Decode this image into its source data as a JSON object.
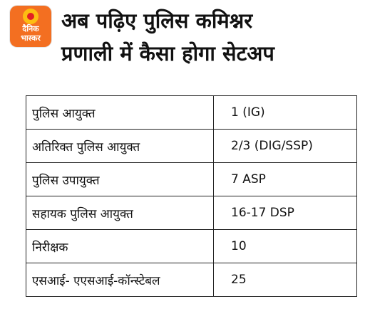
{
  "logo": {
    "line1": "दैनिक",
    "line2": "भास्कर",
    "brand_orange": "#f36f21",
    "sun_yellow": "#fdbd12",
    "sun_red": "#e31e24"
  },
  "title": {
    "line1": "अब पढ़िए पुलिस कमिश्नर",
    "line2": "प्रणाली में कैसा होगा सेटअप"
  },
  "table": {
    "rows": [
      {
        "post": "पुलिस आयुक्त",
        "value": "1 (IG)"
      },
      {
        "post": "अतिरिक्त पुलिस आयुक्त",
        "value": "2/3 (DIG/SSP)"
      },
      {
        "post": "पुलिस उपायुक्त",
        "value": "7 ASP"
      },
      {
        "post": "सहायक पुलिस आयुक्त",
        "value": "16-17 DSP"
      },
      {
        "post": "निरीक्षक",
        "value": "10"
      },
      {
        "post": "एसआई- एएसआई-कॉन्स्टेबल",
        "value": "25"
      }
    ]
  }
}
